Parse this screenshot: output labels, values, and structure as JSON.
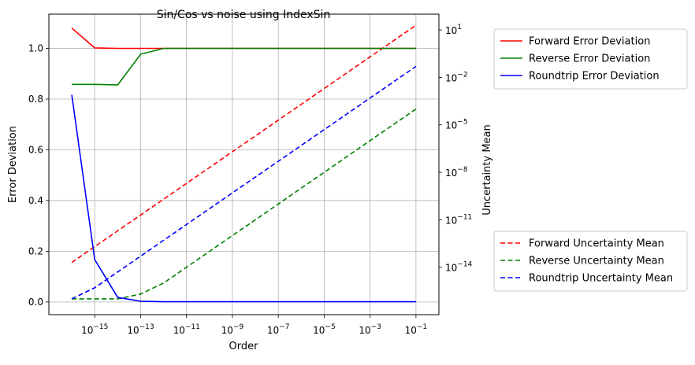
{
  "chart_data": {
    "type": "line",
    "title": "Sin/Cos vs noise using IndexSin",
    "xlabel": "Order",
    "ylabel_left": "Error Deviation",
    "ylabel_right": "Uncertainty Mean",
    "x_scale": "log",
    "x_range": [
      1e-17,
      1
    ],
    "x_ticks": [
      {
        "value": 1e-15,
        "base": "10",
        "exp": "−15"
      },
      {
        "value": 1e-13,
        "base": "10",
        "exp": "−13"
      },
      {
        "value": 1e-11,
        "base": "10",
        "exp": "−11"
      },
      {
        "value": 1e-09,
        "base": "10",
        "exp": "−9"
      },
      {
        "value": 1e-07,
        "base": "10",
        "exp": "−7"
      },
      {
        "value": 1e-05,
        "base": "10",
        "exp": "−5"
      },
      {
        "value": 0.001,
        "base": "10",
        "exp": "−3"
      },
      {
        "value": 0.1,
        "base": "10",
        "exp": "−1"
      }
    ],
    "y_left_range": [
      -0.05,
      1.135
    ],
    "y_left_ticks": [
      "0.0",
      "0.2",
      "0.4",
      "0.6",
      "0.8",
      "1.0"
    ],
    "y_right_scale": "log",
    "y_right_range": [
      1e-17,
      100.0
    ],
    "y_right_ticks": [
      {
        "value": 10.0,
        "base": "10",
        "exp": "1"
      },
      {
        "value": 0.01,
        "base": "10",
        "exp": "−2"
      },
      {
        "value": 1e-05,
        "base": "10",
        "exp": "−5"
      },
      {
        "value": 1e-08,
        "base": "10",
        "exp": "−8"
      },
      {
        "value": 1e-11,
        "base": "10",
        "exp": "−11"
      },
      {
        "value": 1e-14,
        "base": "10",
        "exp": "−14"
      }
    ],
    "grid": true,
    "x": [
      1e-16,
      1e-15,
      1e-14,
      1e-13,
      1e-12,
      1e-11,
      1e-10,
      1e-09,
      1e-08,
      1e-07,
      1e-06,
      1e-05,
      0.0001,
      0.001,
      0.01,
      0.1
    ],
    "series_left": [
      {
        "name": "Forward Error Deviation",
        "color": "#ff0000",
        "values": [
          1.08,
          1.002,
          1.0,
          1.0,
          1.0,
          1.0,
          1.0,
          1.0,
          1.0,
          1.0,
          1.0,
          1.0,
          1.0,
          1.0,
          1.0,
          1.0
        ]
      },
      {
        "name": "Reverse Error Deviation",
        "color": "#008000",
        "values": [
          0.858,
          0.858,
          0.856,
          0.977,
          1.0,
          1.0,
          1.0,
          1.0,
          1.0,
          1.0,
          1.0,
          1.0,
          1.0,
          1.0,
          1.0,
          1.0
        ]
      },
      {
        "name": "Roundtrip Error Deviation",
        "color": "#0000ff",
        "values": [
          0.817,
          0.167,
          0.018,
          0.003,
          0.001,
          0.001,
          0.001,
          0.001,
          0.001,
          0.001,
          0.001,
          0.001,
          0.001,
          0.001,
          0.001,
          0.001
        ]
      }
    ],
    "series_right": [
      {
        "name": "Forward Uncertainty Mean",
        "color": "#ff0000",
        "values": [
          2e-14,
          2e-13,
          2e-12,
          2e-11,
          2e-10,
          2e-09,
          2e-08,
          2e-07,
          2e-06,
          2e-05,
          0.0002,
          0.002,
          0.02,
          0.2,
          2.0,
          20.0
        ]
      },
      {
        "name": "Reverse Uncertainty Mean",
        "color": "#008000",
        "values": [
          1e-16,
          1e-16,
          1e-16,
          2e-16,
          1e-15,
          1e-14,
          1e-13,
          1e-12,
          1e-11,
          1e-10,
          1e-09,
          1e-08,
          1e-07,
          1e-06,
          1e-05,
          0.0001
        ]
      },
      {
        "name": "Roundtrip Uncertainty Mean",
        "color": "#0000ff",
        "values": [
          1e-16,
          5e-16,
          5e-15,
          5e-14,
          5e-13,
          5e-12,
          5e-11,
          5e-10,
          5e-09,
          5e-08,
          5e-07,
          5e-06,
          5e-05,
          0.0005,
          0.005,
          0.05
        ]
      }
    ],
    "legend_left_placement": "upper-right-outside",
    "legend_right_placement": "lower-right-outside"
  }
}
